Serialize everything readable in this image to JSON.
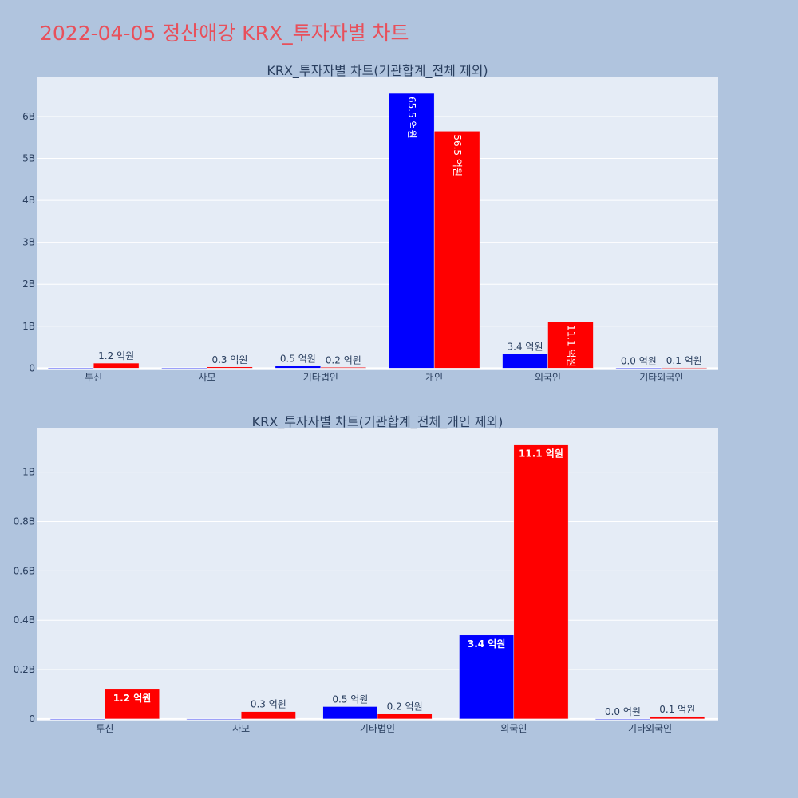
{
  "page": {
    "title": "2022-04-05 정산애강 KRX_투자자별 차트"
  },
  "chart_data": [
    {
      "type": "bar",
      "title": "KRX_투자자별 차트(기관합계_전체 제외)",
      "categories": [
        "투신",
        "사모",
        "기타법인",
        "개인",
        "외국인",
        "기타외국인"
      ],
      "series": [
        {
          "color": "#0000ff",
          "values": [
            0,
            0,
            0.05,
            6.55,
            0.34,
            0.0
          ]
        },
        {
          "color": "#ff0000",
          "values": [
            0.12,
            0.03,
            0.02,
            5.65,
            1.11,
            0.01
          ]
        }
      ],
      "data_labels": [
        [
          "",
          "",
          "0.5 억원",
          "65.5 억원",
          "3.4 억원",
          "0.0 억원"
        ],
        [
          "1.2 억원",
          "0.3 억원",
          "0.2 억원",
          "56.5 억원",
          "11.1 억원",
          "0.1 억원"
        ]
      ],
      "yunit": "B",
      "yticks": [
        0,
        1,
        2,
        3,
        4,
        5,
        6
      ],
      "ytick_labels": [
        "0",
        "1B",
        "2B",
        "3B",
        "4B",
        "5B",
        "6B"
      ],
      "ylim": [
        -0.05,
        6.95
      ],
      "grid": true
    },
    {
      "type": "bar",
      "title": "KRX_투자자별 차트(기관합계_전체_개인 제외)",
      "categories": [
        "투신",
        "사모",
        "기타법인",
        "외국인",
        "기타외국인"
      ],
      "series": [
        {
          "color": "#0000ff",
          "values": [
            0,
            0,
            0.05,
            0.34,
            0.0
          ]
        },
        {
          "color": "#ff0000",
          "values": [
            0.12,
            0.03,
            0.02,
            1.11,
            0.01
          ]
        }
      ],
      "data_labels": [
        [
          "",
          "",
          "0.5 억원",
          "3.4 억원",
          "0.0 억원"
        ],
        [
          "1.2 억원",
          "0.3 억원",
          "0.2 억원",
          "11.1 억원",
          "0.1 억원"
        ]
      ],
      "yunit": "B",
      "yticks": [
        0,
        0.2,
        0.4,
        0.6,
        0.8,
        1.0
      ],
      "ytick_labels": [
        "0",
        "0.2B",
        "0.4B",
        "0.6B",
        "0.8B",
        "1B"
      ],
      "ylim": [
        -0.01,
        1.18
      ],
      "grid": true
    }
  ]
}
